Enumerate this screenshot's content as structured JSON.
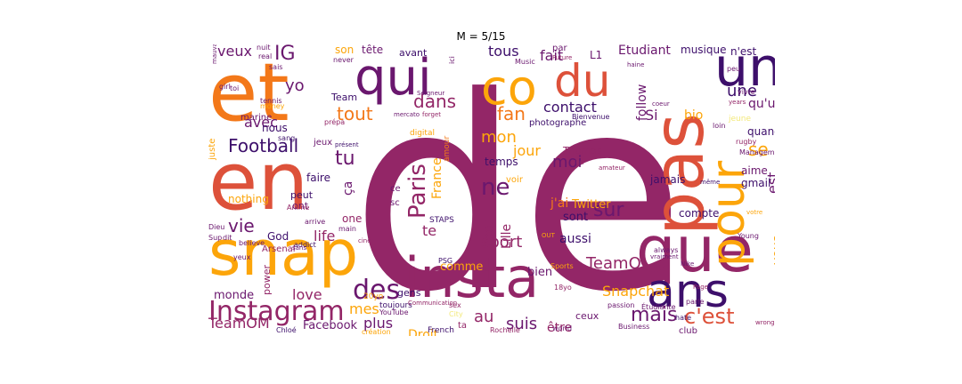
{
  "title": "M = 5/15",
  "palette": {
    "dark_purple": "#3d0f6b",
    "purple": "#6a176e",
    "magenta": "#932667",
    "red": "#dd513a",
    "orange": "#f37819",
    "gold": "#fca50a",
    "yellow": "#f6d746",
    "pale": "#f3e97a"
  },
  "words": [
    {
      "text": "de",
      "color": "#932667"
    },
    {
      "text": "et",
      "color": "#f37819"
    },
    {
      "text": "en",
      "color": "#dd513a"
    },
    {
      "text": "snap",
      "color": "#fca50a"
    },
    {
      "text": "insta",
      "color": "#932667"
    },
    {
      "text": "pas",
      "color": "#dd513a"
    },
    {
      "text": "que",
      "color": "#932667"
    },
    {
      "text": "pour",
      "color": "#fca50a"
    },
    {
      "text": "un",
      "color": "#3d0f6b"
    },
    {
      "text": "ans",
      "color": "#3d0f6b"
    },
    {
      "text": "qui",
      "color": "#6a176e"
    },
    {
      "text": "du",
      "color": "#dd513a"
    },
    {
      "text": "co",
      "color": "#fca50a"
    },
    {
      "text": "Instagram",
      "color": "#932667"
    },
    {
      "text": "des",
      "color": "#6a176e"
    },
    {
      "text": "Paris",
      "color": "#932667"
    },
    {
      "text": "ne",
      "color": "#6a176e"
    },
    {
      "text": "c'est",
      "color": "#dd513a"
    },
    {
      "text": "mais",
      "color": "#6a176e"
    },
    {
      "text": "sur",
      "color": "#6a176e"
    },
    {
      "text": "Football",
      "color": "#3d0f6b"
    },
    {
      "text": "vie",
      "color": "#6a176e"
    },
    {
      "text": "tu",
      "color": "#6a176e"
    },
    {
      "text": "IG",
      "color": "#6a176e"
    },
    {
      "text": "dans",
      "color": "#932667"
    },
    {
      "text": "tout",
      "color": "#f37819"
    },
    {
      "text": "fan",
      "color": "#f37819"
    },
    {
      "text": "moi",
      "color": "#6a176e"
    },
    {
      "text": "une",
      "color": "#3d0f6b"
    },
    {
      "text": "se",
      "color": "#fca50a"
    },
    {
      "text": "est",
      "color": "#6a176e"
    },
    {
      "text": "vous",
      "color": "#fca50a"
    },
    {
      "text": "sport",
      "color": "#932667"
    },
    {
      "text": "au",
      "color": "#932667"
    },
    {
      "text": "suis",
      "color": "#6a176e"
    },
    {
      "text": "TeamOL",
      "color": "#932667"
    },
    {
      "text": "Snapchat",
      "color": "#fca50a"
    },
    {
      "text": "love",
      "color": "#932667"
    },
    {
      "text": "life",
      "color": "#932667"
    },
    {
      "text": "mes",
      "color": "#fca50a"
    },
    {
      "text": "plus",
      "color": "#6a176e"
    },
    {
      "text": "Facebook",
      "color": "#6a176e"
    },
    {
      "text": "TeamOM",
      "color": "#932667"
    },
    {
      "text": "avec",
      "color": "#6a176e"
    },
    {
      "text": "veux",
      "color": "#6a176e"
    },
    {
      "text": "yo",
      "color": "#6a176e"
    },
    {
      "text": "tous",
      "color": "#3d0f6b"
    },
    {
      "text": "fait",
      "color": "#6a176e"
    },
    {
      "text": "contact",
      "color": "#3d0f6b"
    },
    {
      "text": "Si",
      "color": "#6a176e"
    },
    {
      "text": "qu'un",
      "color": "#6a176e"
    },
    {
      "text": "follow",
      "color": "#6a176e"
    },
    {
      "text": "bio",
      "color": "#fca50a"
    },
    {
      "text": "mon",
      "color": "#fca50a"
    },
    {
      "text": "jour",
      "color": "#fca50a"
    },
    {
      "text": "j'ai",
      "color": "#f37819"
    },
    {
      "text": "te",
      "color": "#932667"
    },
    {
      "text": "France",
      "color": "#fca50a"
    },
    {
      "text": "Foot",
      "color": "#932667"
    },
    {
      "text": "Lille",
      "color": "#932667"
    },
    {
      "text": "Twitter",
      "color": "#fca50a"
    },
    {
      "text": "aussi",
      "color": "#3d0f6b"
    },
    {
      "text": "sont",
      "color": "#3d0f6b"
    },
    {
      "text": "comme",
      "color": "#fca50a"
    },
    {
      "text": "bien",
      "color": "#6a176e"
    },
    {
      "text": "être",
      "color": "#932667"
    },
    {
      "text": "ceux",
      "color": "#6a176e"
    },
    {
      "text": "Droit",
      "color": "#fca50a"
    },
    {
      "text": "monde",
      "color": "#6a176e"
    },
    {
      "text": "faire",
      "color": "#3d0f6b"
    },
    {
      "text": "nothing",
      "color": "#fca50a"
    },
    {
      "text": "God",
      "color": "#3d0f6b"
    },
    {
      "text": "one",
      "color": "#932667"
    },
    {
      "text": "ça",
      "color": "#6a176e"
    },
    {
      "text": "quand",
      "color": "#3d0f6b"
    },
    {
      "text": "aime",
      "color": "#6a176e"
    },
    {
      "text": "gmail",
      "color": "#3d0f6b"
    },
    {
      "text": "compte",
      "color": "#3d0f6b"
    },
    {
      "text": "jamais",
      "color": "#3d0f6b"
    },
    {
      "text": "temps",
      "color": "#3d0f6b"
    },
    {
      "text": "Thomas",
      "color": "#932667"
    },
    {
      "text": "Étudiant",
      "color": "#6a176e"
    },
    {
      "text": "L1",
      "color": "#6a176e"
    },
    {
      "text": "musique",
      "color": "#3d0f6b"
    },
    {
      "text": "n'est",
      "color": "#3d0f6b"
    },
    {
      "text": "tête",
      "color": "#6a176e"
    },
    {
      "text": "avant",
      "color": "#3d0f6b"
    },
    {
      "text": "nous",
      "color": "#3d0f6b"
    },
    {
      "text": "marine",
      "color": "#6a176e"
    },
    {
      "text": "Team",
      "color": "#3d0f6b"
    },
    {
      "text": "juste",
      "color": "#fca50a"
    },
    {
      "text": "jeux",
      "color": "#6a176e"
    },
    {
      "text": "photographe",
      "color": "#3d0f6b"
    },
    {
      "text": "gens",
      "color": "#3d0f6b"
    },
    {
      "text": "peut",
      "color": "#3d0f6b"
    },
    {
      "text": "ont",
      "color": "#6a176e"
    },
    {
      "text": "power",
      "color": "#932667"
    },
    {
      "text": "STAPS",
      "color": "#3d0f6b"
    },
    {
      "text": "sc",
      "color": "#6a176e"
    },
    {
      "text": "ce",
      "color": "#6a176e"
    },
    {
      "text": "voir",
      "color": "#fca50a"
    },
    {
      "text": "club",
      "color": "#6a176e"
    },
    {
      "text": "son",
      "color": "#fca50a"
    },
    {
      "text": "nuit",
      "color": "#6a176e"
    },
    {
      "text": "real",
      "color": "#6a176e"
    },
    {
      "text": "sais",
      "color": "#6a176e"
    },
    {
      "text": "never",
      "color": "#6a176e"
    },
    {
      "text": "Music",
      "color": "#6a176e"
    },
    {
      "text": "Future",
      "color": "#932667"
    },
    {
      "text": "par",
      "color": "#6a176e"
    },
    {
      "text": "haine",
      "color": "#6a176e"
    },
    {
      "text": "peu",
      "color": "#6a176e"
    },
    {
      "text": "vivre",
      "color": "#6a176e"
    },
    {
      "text": "jeune",
      "color": "#f3e97a"
    },
    {
      "text": "loin",
      "color": "#6a176e"
    },
    {
      "text": "rugby",
      "color": "#932667"
    },
    {
      "text": "Management",
      "color": "#6a176e"
    },
    {
      "text": "Young",
      "color": "#6a176e"
    },
    {
      "text": "Page",
      "color": "#932667"
    },
    {
      "text": "wrong",
      "color": "#932667"
    },
    {
      "text": "Étudiante",
      "color": "#6a176e"
    },
    {
      "text": "passion",
      "color": "#6a176e"
    },
    {
      "text": "Business",
      "color": "#6a176e"
    },
    {
      "text": "world",
      "color": "#6a176e"
    },
    {
      "text": "Rochelle",
      "color": "#932667"
    },
    {
      "text": "French",
      "color": "#3d0f6b"
    },
    {
      "text": "toujours",
      "color": "#3d0f6b"
    },
    {
      "text": "YouTube",
      "color": "#6a176e"
    },
    {
      "text": "Chloé",
      "color": "#3d0f6b"
    },
    {
      "text": "création",
      "color": "#fca50a"
    },
    {
      "text": "sex",
      "color": "#932667"
    },
    {
      "text": "20yo",
      "color": "#fca50a"
    },
    {
      "text": "Arsenal",
      "color": "#932667"
    },
    {
      "text": "believe",
      "color": "#6a176e"
    },
    {
      "text": "addict",
      "color": "#3d0f6b"
    },
    {
      "text": "arrive",
      "color": "#6a176e"
    },
    {
      "text": "main",
      "color": "#6a176e"
    },
    {
      "text": "Anime",
      "color": "#932667"
    },
    {
      "text": "Dieu",
      "color": "#6a176e"
    },
    {
      "text": "Sup",
      "color": "#6a176e"
    },
    {
      "text": "dit",
      "color": "#6a176e"
    },
    {
      "text": "yeux",
      "color": "#6a176e"
    },
    {
      "text": "girl",
      "color": "#6a176e"
    },
    {
      "text": "toi",
      "color": "#6a176e"
    },
    {
      "text": "sang",
      "color": "#3d0f6b"
    },
    {
      "text": "présent",
      "color": "#3d0f6b"
    },
    {
      "text": "mercato",
      "color": "#6a176e"
    },
    {
      "text": "forget",
      "color": "#932667"
    },
    {
      "text": "digital",
      "color": "#fca50a"
    },
    {
      "text": "Seigneur",
      "color": "#6a176e"
    },
    {
      "text": "prépa",
      "color": "#932667"
    },
    {
      "text": "money",
      "color": "#fca50a"
    },
    {
      "text": "tennis",
      "color": "#6a176e"
    },
    {
      "text": "Bienvenue",
      "color": "#3d0f6b"
    },
    {
      "text": "PSG",
      "color": "#3d0f6b"
    },
    {
      "text": "Communication",
      "color": "#932667"
    },
    {
      "text": "Sports",
      "color": "#fca50a"
    },
    {
      "text": "18yo",
      "color": "#932667"
    },
    {
      "text": "vraiment",
      "color": "#6a176e"
    },
    {
      "text": "always",
      "color": "#6a176e"
    },
    {
      "text": "même",
      "color": "#3d0f6b"
    },
    {
      "text": "years",
      "color": "#932667"
    },
    {
      "text": "coeur",
      "color": "#6a176e"
    },
    {
      "text": "amateur",
      "color": "#932667"
    },
    {
      "text": "amour",
      "color": "#f37819"
    },
    {
      "text": "d'un",
      "color": "#932667"
    },
    {
      "text": "parle",
      "color": "#6a176e"
    },
    {
      "text": "hate",
      "color": "#3d0f6b"
    },
    {
      "text": "votre",
      "color": "#fca50a"
    },
    {
      "text": "ici",
      "color": "#6a176e"
    },
    {
      "text": "ta",
      "color": "#932667"
    },
    {
      "text": "City",
      "color": "#f3e97a"
    },
    {
      "text": "Nike",
      "color": "#6a176e"
    },
    {
      "text": "OUT",
      "color": "#fca50a"
    },
    {
      "text": "ciné",
      "color": "#932667"
    },
    {
      "text": "sans",
      "color": "#6a176e"
    },
    {
      "text": "mauvais",
      "color": "#6a176e"
    }
  ]
}
